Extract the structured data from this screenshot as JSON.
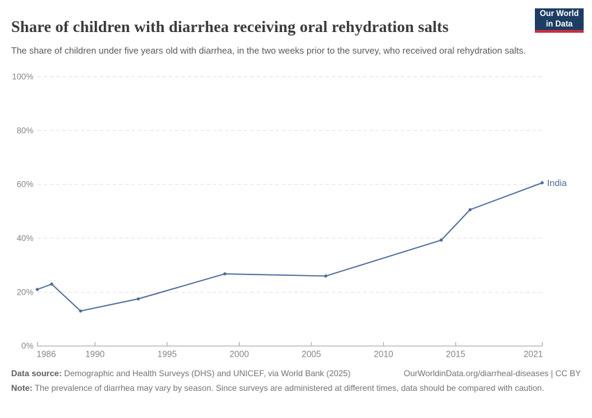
{
  "header": {
    "title": "Share of children with diarrhea receiving oral rehydration salts",
    "subtitle": "The share of children under five years old with diarrhea, in the two weeks prior to the survey, who received oral rehydration salts.",
    "logo": {
      "line1": "Our World",
      "line2": "in Data",
      "bg_color": "#1d3d63",
      "accent_color": "#c62f3f"
    }
  },
  "chart_data": {
    "type": "line",
    "title": "Share of children with diarrhea receiving oral rehydration salts",
    "xlabel": "",
    "ylabel": "",
    "unit": "%",
    "xlim": [
      1986,
      2021
    ],
    "ylim": [
      0,
      100
    ],
    "grid": "horizontal-dashed",
    "legend_position": "end-of-line-label",
    "x_ticks": [
      1986,
      1990,
      1995,
      2000,
      2005,
      2010,
      2015,
      2021
    ],
    "y_ticks": [
      0,
      20,
      40,
      60,
      80,
      100
    ],
    "series": [
      {
        "name": "India",
        "color": "#4c6a9c",
        "x": [
          1986,
          1987,
          1989,
          1993,
          1999,
          2006,
          2014,
          2016,
          2021
        ],
        "values": [
          21,
          23,
          13,
          17.5,
          26.8,
          26,
          39.3,
          50.6,
          60.6
        ]
      }
    ]
  },
  "colors": {
    "line": "#4c6a9c",
    "grid": "#e2e2e2",
    "axis": "#a3a3a3",
    "tick_label": "#868686"
  },
  "footer": {
    "source_label": "Data source:",
    "source_text": " Demographic and Health Surveys (DHS) and UNICEF, via World Bank (2025)",
    "url_text": "OurWorldinData.org/diarrheal-diseases | CC BY",
    "note_label": "Note:",
    "note_text": " The prevalence of diarrhea may vary by season. Since surveys are administered at different times, data should be compared with caution."
  }
}
